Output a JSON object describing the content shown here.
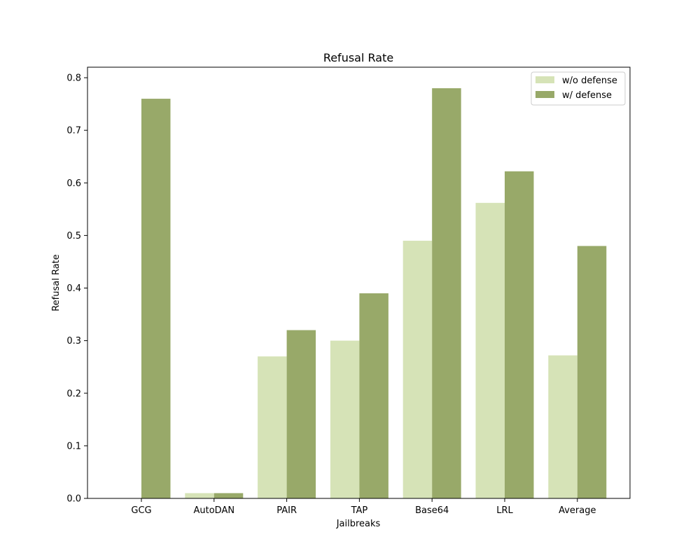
{
  "chart_data": {
    "type": "bar",
    "title": "Refusal Rate",
    "xlabel": "Jailbreaks",
    "ylabel": "Refusal Rate",
    "categories": [
      "GCG",
      "AutoDAN",
      "PAIR",
      "TAP",
      "Base64",
      "LRL",
      "Average"
    ],
    "series": [
      {
        "name": "w/o defense",
        "color": "#d6e3b7",
        "values": [
          0.0,
          0.01,
          0.27,
          0.3,
          0.49,
          0.562,
          0.272
        ]
      },
      {
        "name": "w/ defense",
        "color": "#98a969",
        "values": [
          0.76,
          0.01,
          0.32,
          0.39,
          0.78,
          0.622,
          0.48
        ]
      }
    ],
    "ylim": [
      0,
      0.82
    ],
    "yticks": [
      "0.0",
      "0.1",
      "0.2",
      "0.3",
      "0.4",
      "0.5",
      "0.6",
      "0.7",
      "0.8"
    ],
    "legend_position": "top-right",
    "grid": false
  }
}
